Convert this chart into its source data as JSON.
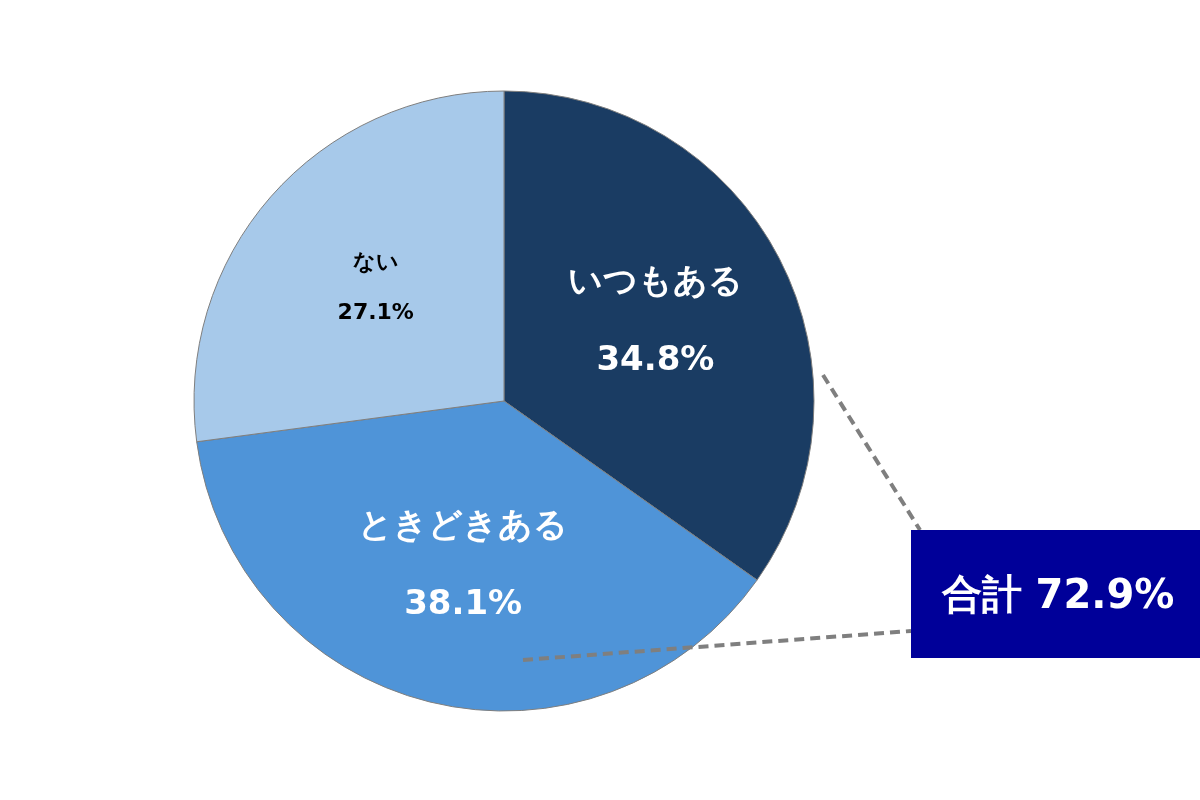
{
  "chart_data": {
    "type": "pie",
    "categories": [
      "いつもある",
      "ときどきある",
      "ない"
    ],
    "values": [
      34.8,
      38.1,
      27.1
    ],
    "colors": [
      "#1a3c63",
      "#4f94d8",
      "#a7c9ea"
    ],
    "value_labels": [
      "34.8%",
      "38.1%",
      "27.1%"
    ],
    "annotations": [
      "合計 72.9%"
    ]
  }
}
